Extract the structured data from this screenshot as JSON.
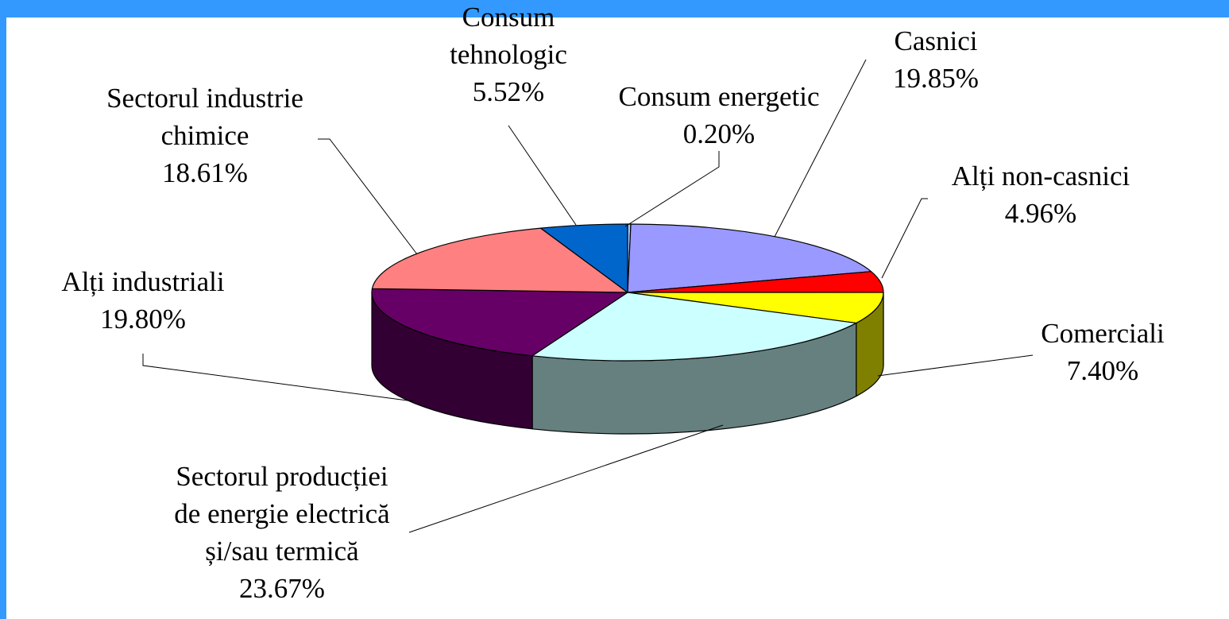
{
  "chart_data": {
    "type": "pie3d",
    "categories": [
      "Consum energetic",
      "Casnici",
      "Alți non-casnici",
      "Comerciali",
      "Sectorul producției\nde energie electrică\nși/sau termică",
      "Alți industriali",
      "Sectorul industrie\nchimice",
      "Consum\ntehnologic"
    ],
    "values": [
      0.2,
      19.85,
      4.96,
      7.4,
      23.67,
      19.8,
      18.61,
      5.52
    ],
    "value_labels": [
      "0.20%",
      "19.85%",
      "4.96%",
      "7.40%",
      "23.67%",
      "19.80%",
      "18.61%",
      "5.52%"
    ],
    "colors": [
      "#99ccff",
      "#9999ff",
      "#ff0000",
      "#ffff00",
      "#ccffff",
      "#660066",
      "#ff8080",
      "#0066cc"
    ]
  }
}
